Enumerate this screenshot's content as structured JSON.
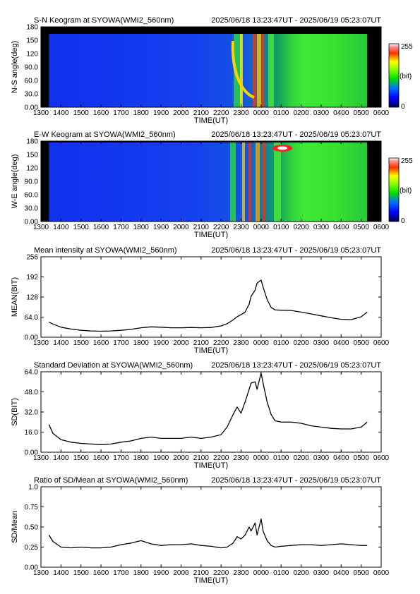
{
  "chart_data": [
    {
      "type": "heatmap",
      "title": "S-N Keogram at SYOWA(WMI2_560nm)",
      "time_range": "2025/06/18 13:23:47UT - 2025/06/19 05:23:07UT",
      "xlabel": "TIME(UT)",
      "ylabel": "N-S angle(deg)",
      "x_ticks": [
        "1300",
        "1400",
        "1500",
        "1600",
        "1700",
        "1800",
        "1900",
        "2000",
        "2100",
        "2200",
        "2300",
        "0000",
        "0100",
        "0200",
        "0300",
        "0400",
        "0500",
        "0600"
      ],
      "y_ticks": [
        "0.00",
        "30.0",
        "60.0",
        "90.0",
        "120",
        "150",
        "180"
      ],
      "ylim": [
        0,
        180
      ],
      "colorbar": {
        "min": "0",
        "max": "255",
        "unit": "(bit)"
      }
    },
    {
      "type": "heatmap",
      "title": "E-W Keogram at SYOWA(WMI2_560nm)",
      "time_range": "2025/06/18 13:23:47UT - 2025/06/19 05:23:07UT",
      "xlabel": "TIME(UT)",
      "ylabel": "W-E angle(deg)",
      "x_ticks": [
        "1300",
        "1400",
        "1500",
        "1600",
        "1700",
        "1800",
        "1900",
        "2000",
        "2100",
        "2200",
        "2300",
        "0000",
        "0100",
        "0200",
        "0300",
        "0400",
        "0500",
        "0600"
      ],
      "y_ticks": [
        "0.00",
        "30.0",
        "60.0",
        "90.0",
        "120",
        "150",
        "180"
      ],
      "ylim": [
        0,
        180
      ],
      "colorbar": {
        "min": "0",
        "max": "255",
        "unit": "(bit)"
      }
    },
    {
      "type": "line",
      "title": "Mean intensity at SYOWA(WMI2_560nm)",
      "time_range": "2025/06/18 13:23:47UT - 2025/06/19 05:23:07UT",
      "xlabel": "TIME(UT)",
      "ylabel": "MEAN(BIT)",
      "x_ticks": [
        "1300",
        "1400",
        "1500",
        "1600",
        "1700",
        "1800",
        "1900",
        "2000",
        "2100",
        "2200",
        "2300",
        "0000",
        "0100",
        "0200",
        "0300",
        "0400",
        "0500",
        "0600"
      ],
      "y_ticks": [
        "0.00",
        "64.0",
        "128",
        "192",
        "256"
      ],
      "ylim": [
        0,
        256
      ],
      "series": [
        {
          "x": [
            13.4,
            13.6,
            14.0,
            14.5,
            15.0,
            15.5,
            16.0,
            16.5,
            17.0,
            17.5,
            18.0,
            18.5,
            19.0,
            19.5,
            20.0,
            20.5,
            21.0,
            21.5,
            22.0,
            22.3,
            22.6,
            22.8,
            23.0,
            23.2,
            23.4,
            23.5,
            23.7,
            23.8,
            24.0,
            24.1,
            24.3,
            24.5,
            24.7,
            25.0,
            25.5,
            26.0,
            26.5,
            27.0,
            27.5,
            28.0,
            28.5,
            29.0,
            29.3
          ],
          "y": [
            48,
            42,
            32,
            26,
            22,
            20,
            19,
            20,
            22,
            25,
            30,
            33,
            32,
            30,
            30,
            31,
            30,
            31,
            36,
            43,
            55,
            65,
            72,
            80,
            105,
            130,
            150,
            172,
            182,
            160,
            120,
            95,
            87,
            86,
            85,
            80,
            74,
            68,
            62,
            57,
            56,
            65,
            80
          ]
        }
      ]
    },
    {
      "type": "line",
      "title": "Standard Deviation at SYOWA(WMI2_560nm)",
      "time_range": "2025/06/18 13:23:47UT - 2025/06/19 05:23:07UT",
      "xlabel": "TIME(UT)",
      "ylabel": "SD(BIT)",
      "x_ticks": [
        "1300",
        "1400",
        "1500",
        "1600",
        "1700",
        "1800",
        "1900",
        "2000",
        "2100",
        "2200",
        "2300",
        "0000",
        "0100",
        "0200",
        "0300",
        "0400",
        "0500",
        "0600"
      ],
      "y_ticks": [
        "0.00",
        "16.0",
        "32.0",
        "48.0",
        "64.0"
      ],
      "ylim": [
        0,
        64
      ],
      "series": [
        {
          "x": [
            13.4,
            13.6,
            14.0,
            14.5,
            15.0,
            15.5,
            16.0,
            16.5,
            17.0,
            17.5,
            18.0,
            18.5,
            19.0,
            19.5,
            20.0,
            20.5,
            21.0,
            21.5,
            22.0,
            22.3,
            22.6,
            22.8,
            23.0,
            23.2,
            23.4,
            23.5,
            23.7,
            23.8,
            24.0,
            24.1,
            24.3,
            24.5,
            24.7,
            25.0,
            25.5,
            26.0,
            26.5,
            27.0,
            27.5,
            28.0,
            28.5,
            29.0,
            29.3
          ],
          "y": [
            22,
            15,
            10,
            8,
            7,
            6.5,
            6,
            6.5,
            8,
            9,
            11,
            12,
            11,
            11,
            11,
            12,
            11,
            12,
            14,
            20,
            30,
            36,
            31,
            40,
            50,
            55,
            56,
            50,
            63,
            55,
            40,
            30,
            25,
            24,
            24,
            23,
            21,
            20,
            19,
            18.5,
            18.5,
            20,
            24
          ]
        }
      ]
    },
    {
      "type": "line",
      "title": "Ratio of SD/Mean at SYOWA(WMI2_560nm)",
      "time_range": "2025/06/18 13:23:47UT - 2025/06/19 05:23:07UT",
      "xlabel": "TIME(UT)",
      "ylabel": "SD/Mean",
      "x_ticks": [
        "1300",
        "1400",
        "1500",
        "1600",
        "1700",
        "1800",
        "1900",
        "2000",
        "2100",
        "2200",
        "2300",
        "0000",
        "0100",
        "0200",
        "0300",
        "0400",
        "0500",
        "0600"
      ],
      "y_ticks": [
        "0.00",
        "0.25",
        "0.50",
        "0.75",
        "1.0"
      ],
      "ylim": [
        0,
        1
      ],
      "series": [
        {
          "x": [
            13.4,
            13.6,
            14.0,
            14.5,
            15.0,
            15.5,
            16.0,
            16.5,
            17.0,
            17.5,
            18.0,
            18.5,
            19.0,
            19.5,
            20.0,
            20.5,
            21.0,
            21.5,
            22.0,
            22.3,
            22.6,
            22.8,
            23.0,
            23.2,
            23.4,
            23.5,
            23.7,
            23.8,
            24.0,
            24.1,
            24.3,
            24.5,
            24.7,
            25.0,
            25.5,
            26.0,
            26.5,
            27.0,
            27.5,
            28.0,
            28.5,
            29.0,
            29.3
          ],
          "y": [
            0.4,
            0.32,
            0.25,
            0.24,
            0.25,
            0.24,
            0.24,
            0.25,
            0.28,
            0.3,
            0.33,
            0.29,
            0.27,
            0.28,
            0.28,
            0.29,
            0.27,
            0.26,
            0.24,
            0.25,
            0.3,
            0.38,
            0.35,
            0.4,
            0.5,
            0.45,
            0.55,
            0.4,
            0.6,
            0.45,
            0.33,
            0.27,
            0.25,
            0.26,
            0.27,
            0.28,
            0.28,
            0.27,
            0.28,
            0.29,
            0.28,
            0.27,
            0.27
          ]
        }
      ]
    }
  ]
}
